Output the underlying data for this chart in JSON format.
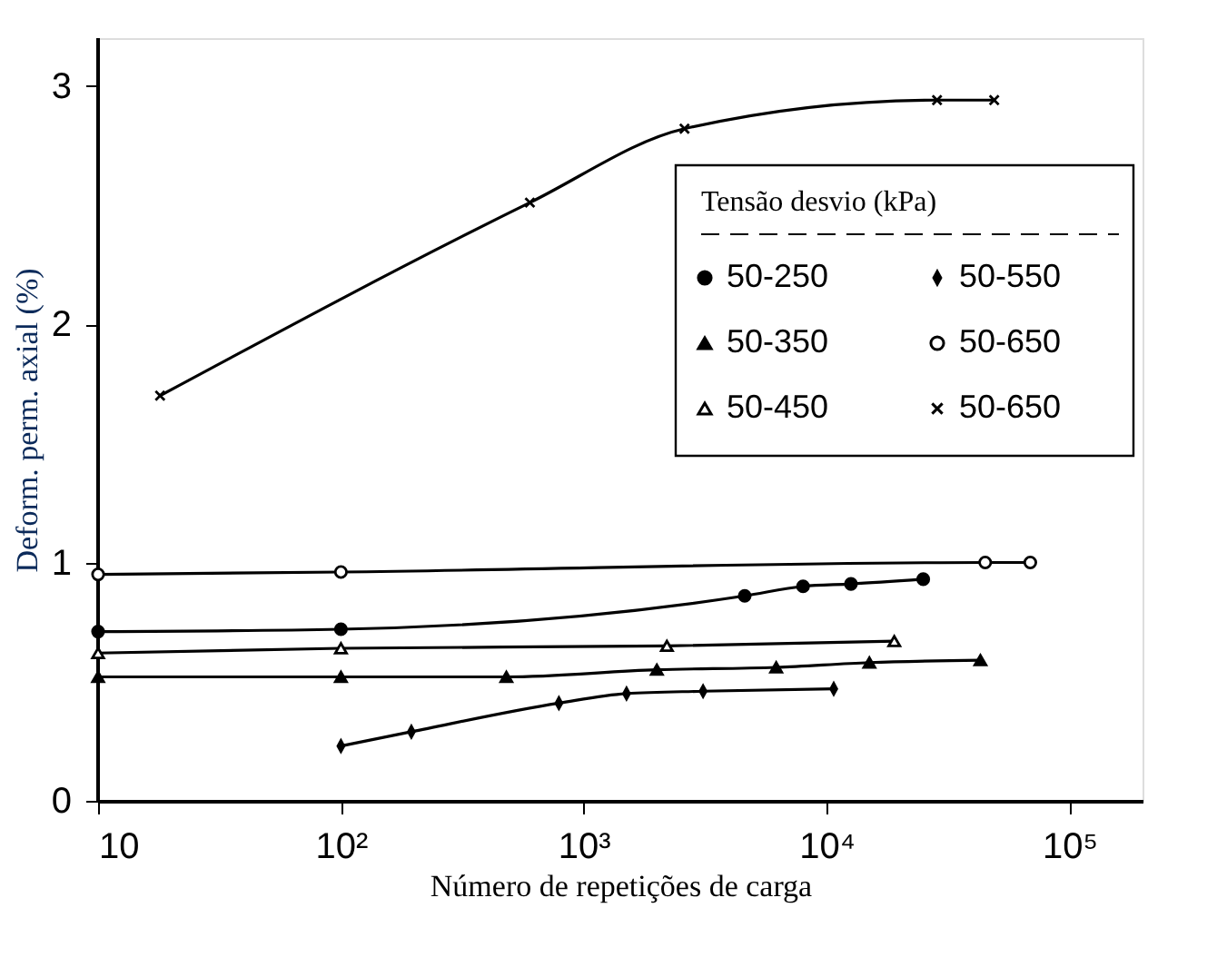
{
  "chart_data": {
    "type": "line",
    "xlabel": "Número de repetições de carga",
    "ylabel": "Deform. perm. axial (%)",
    "legend_title": "Tensão desvio (kPa)",
    "legend": "top right",
    "log": "x",
    "grid": false,
    "line_style": "solid",
    "xlim": [
      10,
      200000
    ],
    "ylim": [
      0,
      3.2
    ],
    "xticks": [
      {
        "value": 10,
        "label": "10"
      },
      {
        "value": 100,
        "label": "10²"
      },
      {
        "value": 1000,
        "label": "10³"
      },
      {
        "value": 10000,
        "label": "10⁴"
      },
      {
        "value": 100000,
        "label": "10⁵"
      }
    ],
    "yticks": [
      0,
      1,
      2,
      3
    ],
    "series": [
      {
        "name": "50-250",
        "color": "#000000",
        "marker": "circle",
        "x": [
          10,
          100,
          4600,
          8000,
          12600,
          25000
        ],
        "values": [
          0.71,
          0.72,
          0.86,
          0.9,
          0.91,
          0.93
        ]
      },
      {
        "name": "50-350",
        "color": "#000000",
        "marker": "triangle",
        "x": [
          10,
          100,
          480,
          2000,
          6200,
          15000,
          43000
        ],
        "values": [
          0.52,
          0.52,
          0.52,
          0.55,
          0.56,
          0.58,
          0.59
        ]
      },
      {
        "name": "50-450",
        "color": "#000000",
        "marker": "triangle",
        "x": [
          10,
          100,
          2200,
          19000
        ],
        "values": [
          0.62,
          0.64,
          0.65,
          0.67
        ]
      },
      {
        "name": "50-550",
        "color": "#000000",
        "marker": "diamond",
        "x": [
          100,
          195,
          790,
          1500,
          3100,
          10700
        ],
        "values": [
          0.23,
          0.29,
          0.41,
          0.45,
          0.46,
          0.47
        ]
      },
      {
        "name": "50-650",
        "color": "#000000",
        "marker": "circle",
        "x": [
          10,
          100,
          45000,
          69000
        ],
        "values": [
          0.95,
          0.96,
          1.0,
          1.0
        ]
      },
      {
        "name": "50-650",
        "color": "#000000",
        "marker": "cross",
        "x": [
          18,
          600,
          2600,
          28500,
          49000
        ],
        "values": [
          1.7,
          2.51,
          2.82,
          2.94,
          2.94
        ]
      }
    ]
  }
}
